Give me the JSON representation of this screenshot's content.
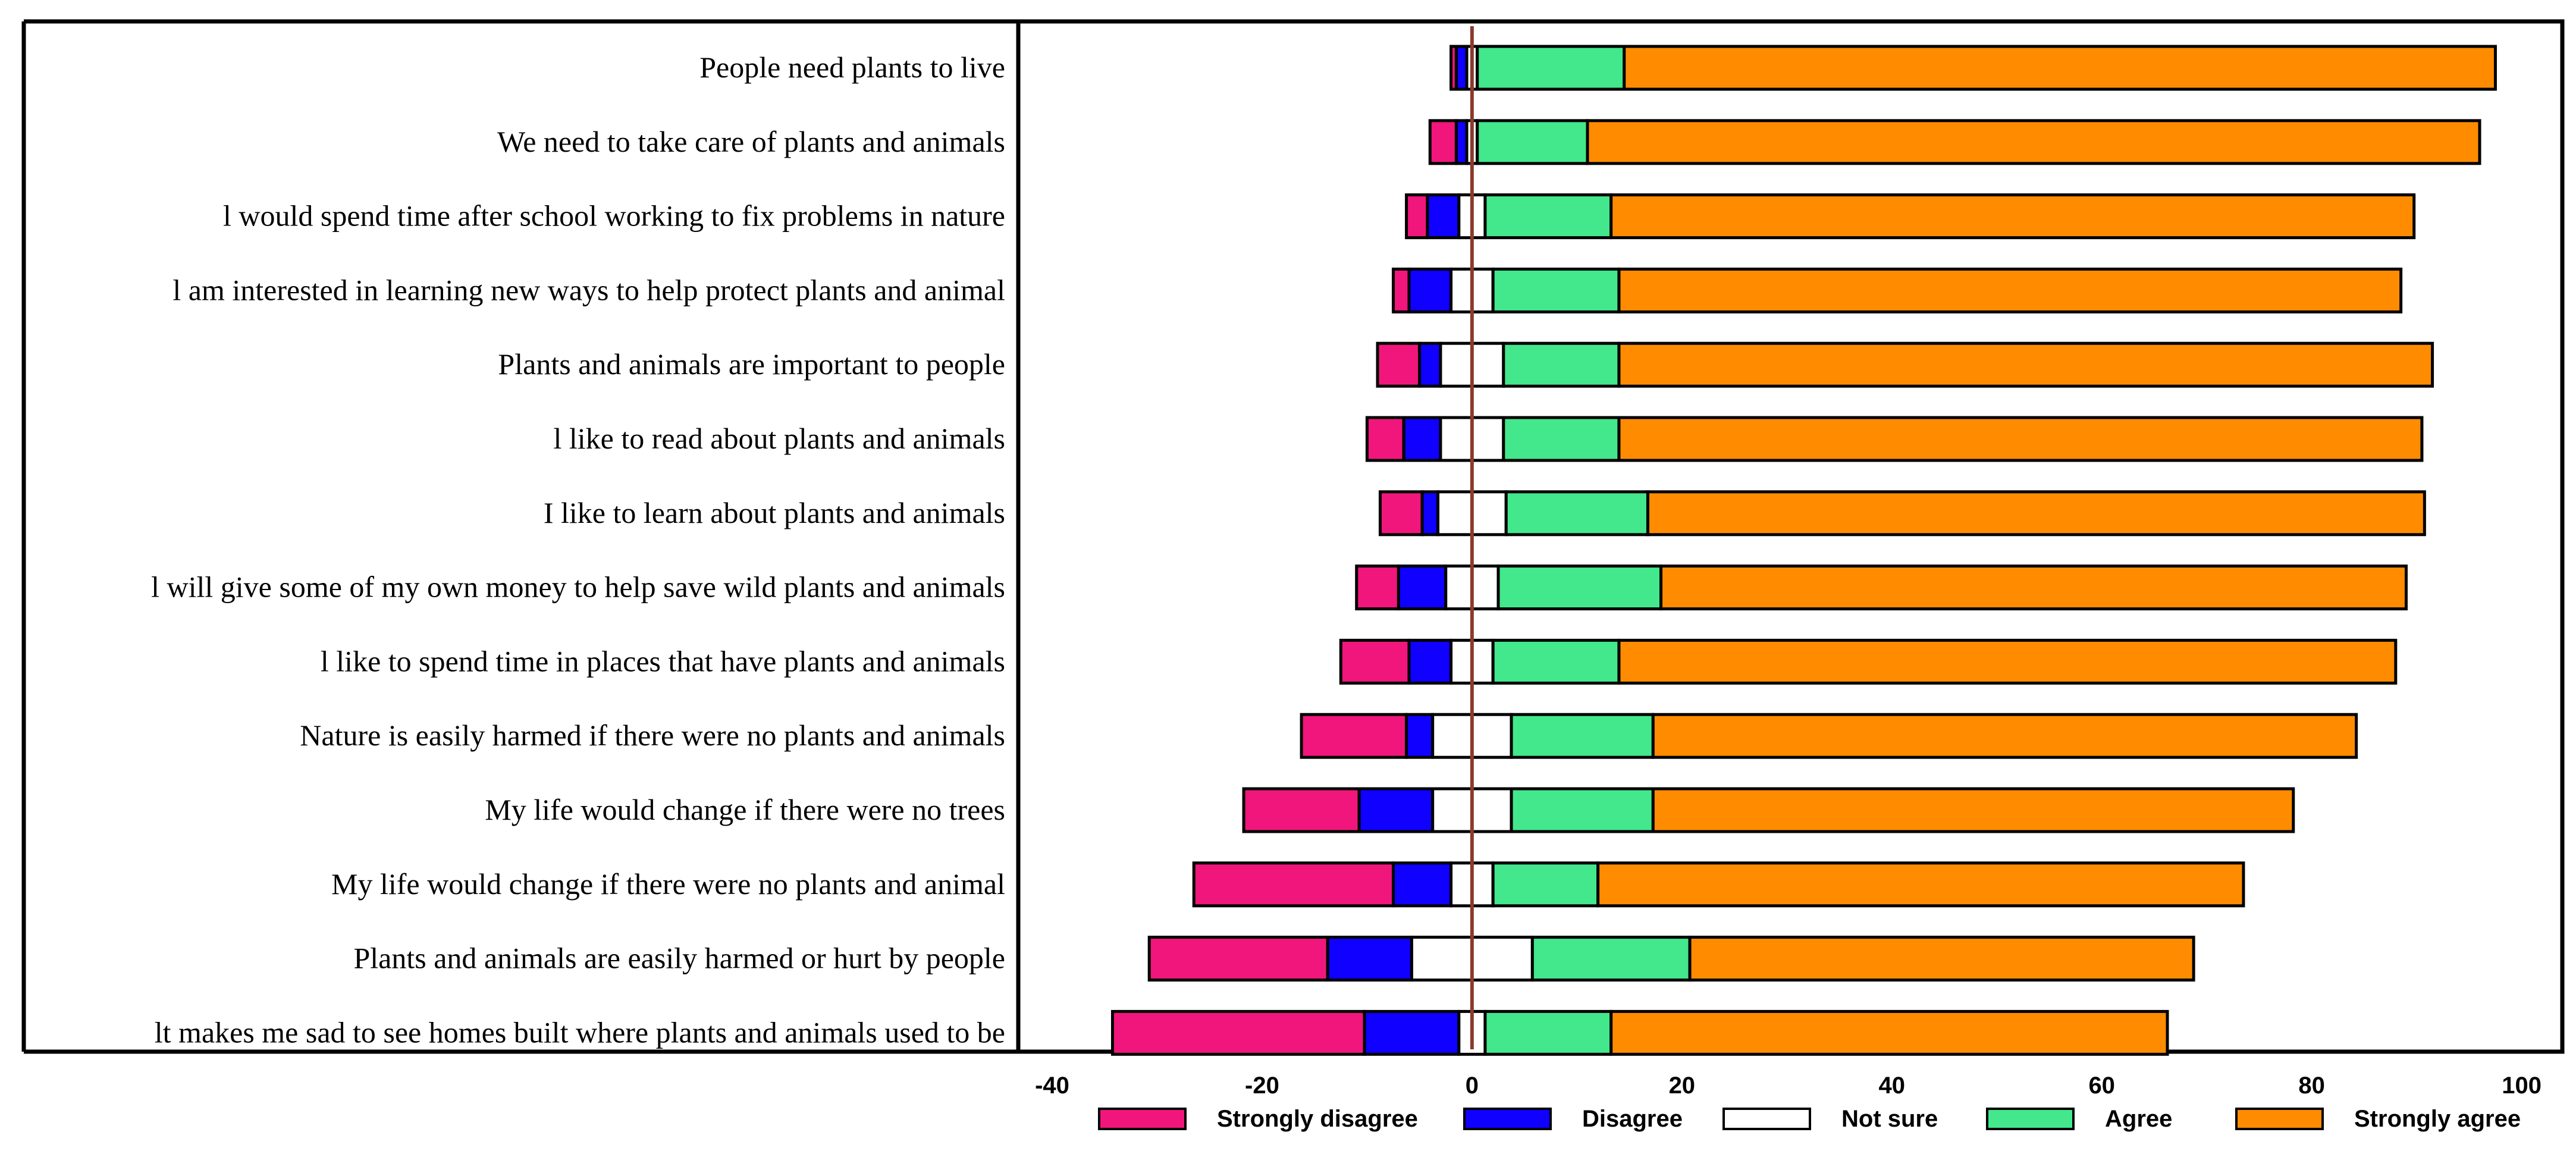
{
  "chart_data": {
    "type": "bar",
    "subtype": "diverging-stacked-horizontal",
    "title": "",
    "xlabel": "",
    "ylabel": "",
    "xlim": [
      -40,
      100
    ],
    "xticks": [
      -40,
      -20,
      0,
      20,
      40,
      60,
      80,
      100
    ],
    "xtick_labels": [
      "-40",
      "-20",
      "0",
      "20",
      "40",
      "60",
      "80",
      "100"
    ],
    "legend_position": "bottom",
    "neutral_series": "Not sure",
    "categories": [
      "People need plants to live",
      "We need to take care of plants and animals",
      "l would spend time after school working to fix problems in nature",
      "l am interested in learning new ways to help protect plants and animal",
      "Plants and animals are important to people",
      "l like to read about plants and animals",
      "I like to learn about plants and animals",
      "l will give some of my own money to help save wild plants and animals",
      "l like to spend time in places that have plants and animals",
      "Nature is easily harmed if there were no plants and animals",
      "My life would change if there were no trees",
      "My life would change if there were no plants and animal",
      "Plants and animals are easily harmed or hurt by people",
      "lt makes me sad to see homes built where plants and animals used to be"
    ],
    "series": [
      {
        "name": "Strongly disagree",
        "color": "#f0167c",
        "values": [
          0.5,
          2.5,
          2,
          1.5,
          4,
          3.5,
          4,
          4,
          6.5,
          10,
          11,
          19,
          17,
          24
        ]
      },
      {
        "name": "Disagree",
        "color": "#0f00ff",
        "values": [
          1,
          1,
          3,
          4,
          2,
          3.5,
          1.5,
          4.5,
          4,
          2.5,
          7,
          5.5,
          8,
          9
        ]
      },
      {
        "name": "Not sure",
        "color": "#ffffff",
        "values": [
          1,
          1,
          2.5,
          4,
          6,
          6,
          6.5,
          5,
          4,
          7.5,
          7.5,
          4,
          11.5,
          2.5
        ]
      },
      {
        "name": "Agree",
        "color": "#42e88b",
        "values": [
          14,
          10.5,
          12,
          12,
          11,
          11,
          13.5,
          15.5,
          12,
          13.5,
          13.5,
          10,
          15,
          12
        ]
      },
      {
        "name": "Strongly agree",
        "color": "#ff8c00",
        "values": [
          83,
          85,
          76.5,
          74.5,
          77.5,
          76.5,
          74,
          71,
          74,
          67,
          61,
          61.5,
          48,
          53
        ]
      }
    ]
  }
}
